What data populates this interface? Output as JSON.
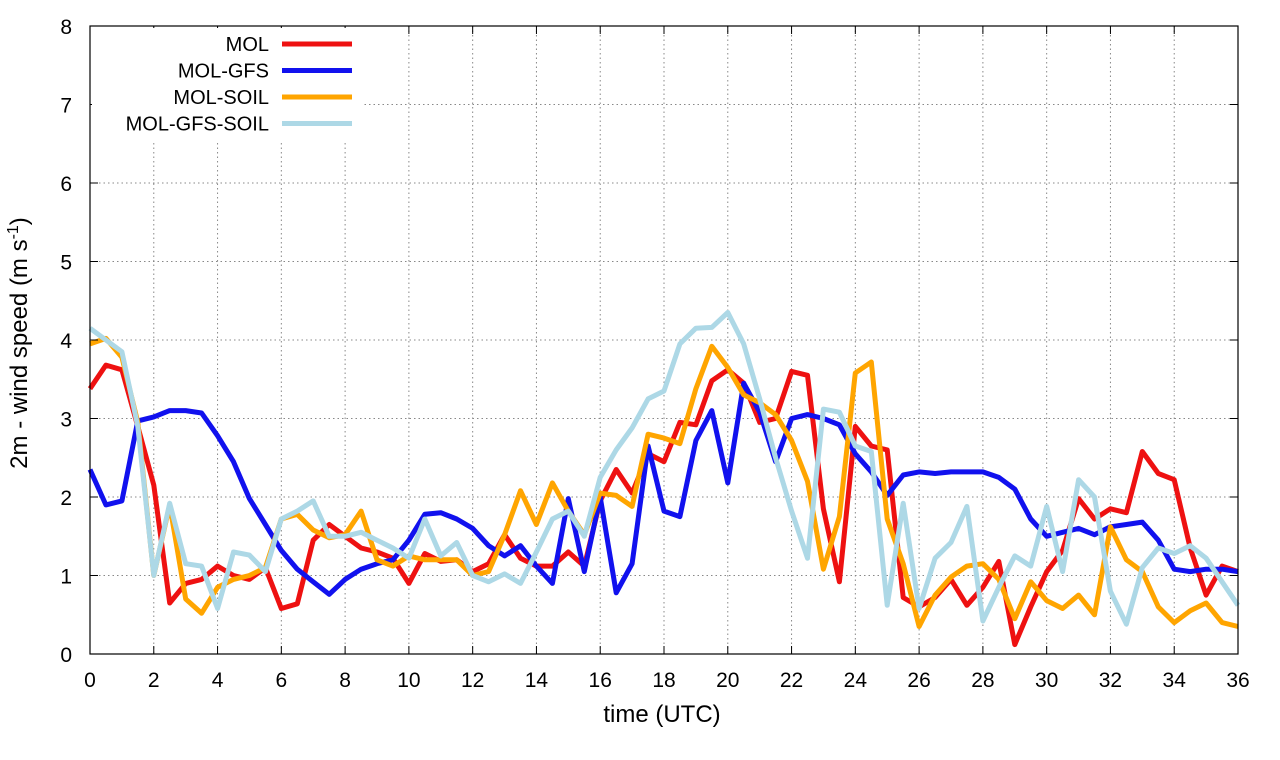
{
  "chart_data": {
    "type": "line",
    "xlabel": "time (UTC)",
    "ylabel": "2m - wind speed  (m s",
    "ylabel_sup": "-1",
    "ylabel_tail": ")",
    "xlim": [
      0,
      36
    ],
    "ylim": [
      0,
      8
    ],
    "x_ticks": [
      0,
      2,
      4,
      6,
      8,
      10,
      12,
      14,
      16,
      18,
      20,
      22,
      24,
      26,
      28,
      30,
      32,
      34,
      36
    ],
    "y_ticks": [
      0,
      1,
      2,
      3,
      4,
      5,
      6,
      7,
      8
    ],
    "grid": true,
    "legend_position": "top-left",
    "x": [
      0,
      0.5,
      1,
      1.5,
      2,
      2.5,
      3,
      3.5,
      4,
      4.5,
      5,
      5.5,
      6,
      6.5,
      7,
      7.5,
      8,
      8.5,
      9,
      9.5,
      10,
      10.5,
      11,
      11.5,
      12,
      12.5,
      13,
      13.5,
      14,
      14.5,
      15,
      15.5,
      16,
      16.5,
      17,
      17.5,
      18,
      18.5,
      19,
      19.5,
      20,
      20.5,
      21,
      21.5,
      22,
      22.5,
      23,
      23.5,
      24,
      24.5,
      25,
      25.5,
      26,
      26.5,
      27,
      27.5,
      28,
      28.5,
      29,
      29.5,
      30,
      30.5,
      31,
      31.5,
      32,
      32.5,
      33,
      33.5,
      34,
      34.5,
      35,
      35.5,
      36
    ],
    "series": [
      {
        "name": "MOL",
        "color": "#ee1111",
        "values": [
          3.38,
          3.68,
          3.62,
          2.9,
          2.15,
          0.65,
          0.9,
          0.95,
          1.12,
          1.0,
          0.95,
          1.1,
          0.58,
          0.64,
          1.45,
          1.65,
          1.5,
          1.35,
          1.3,
          1.22,
          0.9,
          1.28,
          1.18,
          1.2,
          1.05,
          1.15,
          1.52,
          1.22,
          1.12,
          1.12,
          1.3,
          1.12,
          1.95,
          2.35,
          2.05,
          2.55,
          2.45,
          2.95,
          2.92,
          3.48,
          3.62,
          3.45,
          2.95,
          3.0,
          3.6,
          3.55,
          1.85,
          0.92,
          2.9,
          2.65,
          2.6,
          0.72,
          0.6,
          0.72,
          0.95,
          0.62,
          0.85,
          1.18,
          0.12,
          0.6,
          1.05,
          1.32,
          1.98,
          1.72,
          1.85,
          1.8,
          2.58,
          2.3,
          2.22,
          1.35,
          0.75,
          1.12,
          1.05
        ]
      },
      {
        "name": "MOL-GFS",
        "color": "#1111ee",
        "values": [
          2.35,
          1.9,
          1.95,
          2.97,
          3.02,
          3.1,
          3.1,
          3.07,
          2.78,
          2.45,
          1.98,
          1.65,
          1.32,
          1.08,
          0.92,
          0.76,
          0.95,
          1.08,
          1.15,
          1.2,
          1.45,
          1.78,
          1.8,
          1.72,
          1.6,
          1.38,
          1.25,
          1.38,
          1.12,
          0.9,
          1.98,
          1.05,
          2.0,
          0.78,
          1.15,
          2.65,
          1.82,
          1.75,
          2.72,
          3.1,
          2.18,
          3.45,
          3.08,
          2.45,
          3.0,
          3.05,
          3.0,
          2.92,
          2.55,
          2.32,
          2.02,
          2.28,
          2.32,
          2.3,
          2.32,
          2.32,
          2.32,
          2.25,
          2.1,
          1.72,
          1.5,
          1.55,
          1.6,
          1.52,
          1.62,
          1.65,
          1.68,
          1.45,
          1.08,
          1.05,
          1.08,
          1.08,
          1.05
        ]
      },
      {
        "name": "MOL-SOIL",
        "color": "#ffa500",
        "values": [
          3.95,
          4.02,
          3.78,
          2.95,
          1.0,
          1.9,
          0.7,
          0.52,
          0.85,
          0.95,
          1.0,
          1.1,
          1.72,
          1.78,
          1.58,
          1.48,
          1.52,
          1.82,
          1.2,
          1.12,
          1.25,
          1.2,
          1.2,
          1.2,
          1.0,
          1.05,
          1.52,
          2.08,
          1.65,
          2.18,
          1.82,
          1.52,
          2.05,
          2.02,
          1.88,
          2.8,
          2.75,
          2.68,
          3.38,
          3.92,
          3.65,
          3.3,
          3.2,
          3.05,
          2.72,
          2.2,
          1.08,
          1.75,
          3.58,
          3.72,
          1.72,
          1.15,
          0.35,
          0.75,
          0.98,
          1.12,
          1.15,
          0.95,
          0.45,
          0.92,
          0.68,
          0.58,
          0.75,
          0.5,
          1.62,
          1.2,
          1.05,
          0.6,
          0.4,
          0.55,
          0.65,
          0.4,
          0.35
        ]
      },
      {
        "name": "MOL-GFS-SOIL",
        "color": "#add8e6",
        "values": [
          4.15,
          4.0,
          3.85,
          2.9,
          1.0,
          1.92,
          1.15,
          1.12,
          0.58,
          1.3,
          1.26,
          1.05,
          1.72,
          1.82,
          1.95,
          1.5,
          1.5,
          1.55,
          1.45,
          1.35,
          1.22,
          1.72,
          1.25,
          1.42,
          1.0,
          0.92,
          1.02,
          0.9,
          1.3,
          1.72,
          1.82,
          1.5,
          2.25,
          2.6,
          2.88,
          3.25,
          3.35,
          3.95,
          4.15,
          4.16,
          4.35,
          3.95,
          3.25,
          2.5,
          1.82,
          1.22,
          3.12,
          3.08,
          2.65,
          2.58,
          0.62,
          1.92,
          0.58,
          1.22,
          1.42,
          1.88,
          0.42,
          0.85,
          1.25,
          1.12,
          1.88,
          1.05,
          2.22,
          2.0,
          0.8,
          0.38,
          1.1,
          1.35,
          1.28,
          1.38,
          1.22,
          0.92,
          0.62
        ]
      }
    ]
  }
}
